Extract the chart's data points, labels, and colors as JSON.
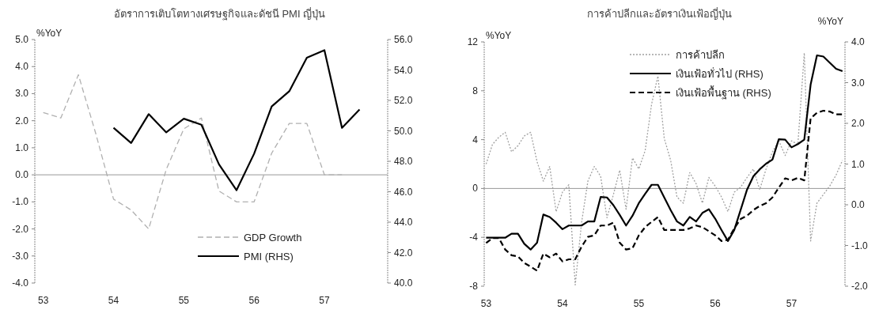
{
  "chart_data": [
    {
      "type": "line",
      "title": "อัตราการเติบโตทางเศรษฐกิจและดัชนี PMI ญี่ปุ่น",
      "ylabel": "%YoY",
      "legend": "bottom right",
      "xlim": [
        52.88,
        57.9
      ],
      "xticks": [
        53,
        54,
        55,
        56,
        57
      ],
      "ylim": [
        -4,
        5
      ],
      "yticks": [
        {
          "value": -4,
          "label": "-4.0"
        },
        {
          "value": -3,
          "label": "-3.0"
        },
        {
          "value": -2,
          "label": "-2.0"
        },
        {
          "value": -1,
          "label": "-1.0"
        },
        {
          "value": 0,
          "label": "0.0"
        },
        {
          "value": 1,
          "label": "1.0"
        },
        {
          "value": 2,
          "label": "2.0"
        },
        {
          "value": 3,
          "label": "3.0"
        },
        {
          "value": 4,
          "label": "4.0"
        },
        {
          "value": 5,
          "label": "5.0"
        }
      ],
      "y2lim": [
        40,
        56
      ],
      "y2ticks": [
        {
          "value": 40,
          "label": "40.0"
        },
        {
          "value": 42,
          "label": "42.0"
        },
        {
          "value": 44,
          "label": "44.0"
        },
        {
          "value": 46,
          "label": "46.0"
        },
        {
          "value": 48,
          "label": "48.0"
        },
        {
          "value": 50,
          "label": "50.0"
        },
        {
          "value": 52,
          "label": "52.0"
        },
        {
          "value": 54,
          "label": "54.0"
        },
        {
          "value": 56,
          "label": "56.0"
        }
      ],
      "ref_lines": [
        {
          "axis": "y",
          "value": 0,
          "color": "#999999"
        }
      ],
      "series": [
        {
          "name": "GDP Growth",
          "color": "#b0b0b0",
          "line_style": "dashed",
          "x": [
            53,
            53.25,
            53.5,
            53.75,
            54,
            54.25,
            54.5,
            54.75,
            55,
            55.25,
            55.5,
            55.75,
            56,
            56.25,
            56.5,
            56.75,
            57,
            57.25
          ],
          "values": [
            2.3,
            2.1,
            3.7,
            1.5,
            -0.9,
            -1.3,
            -2.0,
            0.2,
            1.7,
            2.1,
            -0.6,
            -1.0,
            -1.0,
            0.8,
            1.9,
            1.9,
            0.0,
            0.0
          ]
        },
        {
          "name": "PMI (RHS)",
          "color": "#000000",
          "line_style": "solid",
          "axis": "y2",
          "x": [
            54,
            54.25,
            54.5,
            54.75,
            55,
            55.25,
            55.5,
            55.75,
            56,
            56.25,
            56.5,
            56.75,
            57,
            57.25,
            57.5
          ],
          "values": [
            50.2,
            49.2,
            51.1,
            49.9,
            50.8,
            50.4,
            47.8,
            46.1,
            48.5,
            51.6,
            52.6,
            54.8,
            55.3,
            50.2,
            51.4
          ]
        }
      ]
    },
    {
      "type": "line",
      "title": "การค้าปลีกและอัตราเงินเฟ้อญี่ปุ่น",
      "ylabel": "%YoY",
      "y2label": "%YoY",
      "legend": "top",
      "xlim": [
        52.975,
        57.7
      ],
      "xticks": [
        53,
        54,
        55,
        56,
        57
      ],
      "x": [
        53,
        53.083,
        53.167,
        53.25,
        53.333,
        53.417,
        53.5,
        53.583,
        53.667,
        53.75,
        53.833,
        53.917,
        54,
        54.083,
        54.167,
        54.25,
        54.333,
        54.417,
        54.5,
        54.583,
        54.667,
        54.75,
        54.833,
        54.917,
        55,
        55.083,
        55.167,
        55.25,
        55.333,
        55.417,
        55.5,
        55.583,
        55.667,
        55.75,
        55.833,
        55.917,
        56,
        56.083,
        56.167,
        56.25,
        56.333,
        56.417,
        56.5,
        56.583,
        56.667,
        56.75,
        56.833,
        56.917,
        57,
        57.083,
        57.167,
        57.25,
        57.333,
        57.417,
        57.5,
        57.583,
        57.667
      ],
      "ylim": [
        -8,
        12
      ],
      "yticks": [
        -8,
        -4,
        0,
        4,
        8,
        12
      ],
      "y2lim": [
        -2,
        4
      ],
      "y2ticks": [
        {
          "value": -2,
          "label": "-2.0"
        },
        {
          "value": -1,
          "label": "-1.0"
        },
        {
          "value": 0,
          "label": "0.0"
        },
        {
          "value": 1,
          "label": "1.0"
        },
        {
          "value": 2,
          "label": "2.0"
        },
        {
          "value": 3,
          "label": "3.0"
        },
        {
          "value": 4,
          "label": "4.0"
        }
      ],
      "ref_lines": [
        {
          "axis": "y",
          "value": 0,
          "color": "#999999"
        }
      ],
      "series": [
        {
          "name": "การค้าปลีก",
          "color": "#a0a0a0",
          "line_style": "dotted",
          "values": [
            2.0,
            3.6,
            4.2,
            4.6,
            3.0,
            3.5,
            4.3,
            4.6,
            2.2,
            0.6,
            1.8,
            -1.9,
            -0.3,
            0.3,
            -7.9,
            -2.8,
            0.6,
            1.8,
            1.0,
            -2.4,
            -0.5,
            1.5,
            -1.7,
            2.5,
            1.6,
            3.1,
            6.9,
            9.2,
            4.1,
            2.3,
            -0.7,
            -1.2,
            1.3,
            0.4,
            -1.2,
            0.9,
            0.2,
            -0.7,
            -1.9,
            -0.3,
            0.1,
            0.9,
            1.6,
            -0.1,
            1.6,
            3.0,
            3.9,
            2.7,
            3.9,
            3.6,
            11.1,
            -4.3,
            -1.2,
            -0.5,
            0.2,
            1.1,
            2.3
          ]
        },
        {
          "name": "เงินเฟ้อทั่วไป (RHS)",
          "color": "#000000",
          "line_style": "solid",
          "axis": "y2",
          "values": [
            -0.81,
            -0.81,
            -0.81,
            -0.81,
            -0.71,
            -0.71,
            -0.96,
            -1.1,
            -0.93,
            -0.24,
            -0.3,
            -0.44,
            -0.6,
            -0.51,
            -0.51,
            -0.51,
            -0.41,
            -0.41,
            0.19,
            0.18,
            -0.01,
            -0.25,
            -0.51,
            -0.27,
            0.04,
            0.27,
            0.49,
            0.49,
            0.18,
            -0.13,
            -0.41,
            -0.51,
            -0.3,
            -0.41,
            -0.2,
            -0.11,
            -0.34,
            -0.62,
            -0.89,
            -0.62,
            -0.13,
            0.37,
            0.7,
            0.87,
            1.01,
            1.11,
            1.61,
            1.6,
            1.41,
            1.49,
            1.6,
            2.95,
            3.67,
            3.64,
            3.49,
            3.34,
            3.28
          ]
        },
        {
          "name": "เงินเฟ้อพื้นฐาน (RHS)",
          "color": "#000000",
          "line_style": "dashed",
          "axis": "y2",
          "values": [
            -0.94,
            -0.82,
            -0.82,
            -1.1,
            -1.24,
            -1.27,
            -1.43,
            -1.52,
            -1.62,
            -1.2,
            -1.29,
            -1.2,
            -1.39,
            -1.34,
            -1.34,
            -1.03,
            -0.79,
            -0.75,
            -0.51,
            -0.51,
            -0.44,
            -0.93,
            -1.1,
            -1.07,
            -0.75,
            -0.55,
            -0.42,
            -0.3,
            -0.62,
            -0.62,
            -0.62,
            -0.62,
            -0.58,
            -0.51,
            -0.55,
            -0.65,
            -0.75,
            -0.89,
            -0.86,
            -0.58,
            -0.35,
            -0.27,
            -0.13,
            -0.03,
            0.04,
            0.18,
            0.42,
            0.65,
            0.6,
            0.66,
            0.6,
            2.12,
            2.26,
            2.31,
            2.29,
            2.22,
            2.22
          ]
        }
      ]
    }
  ]
}
